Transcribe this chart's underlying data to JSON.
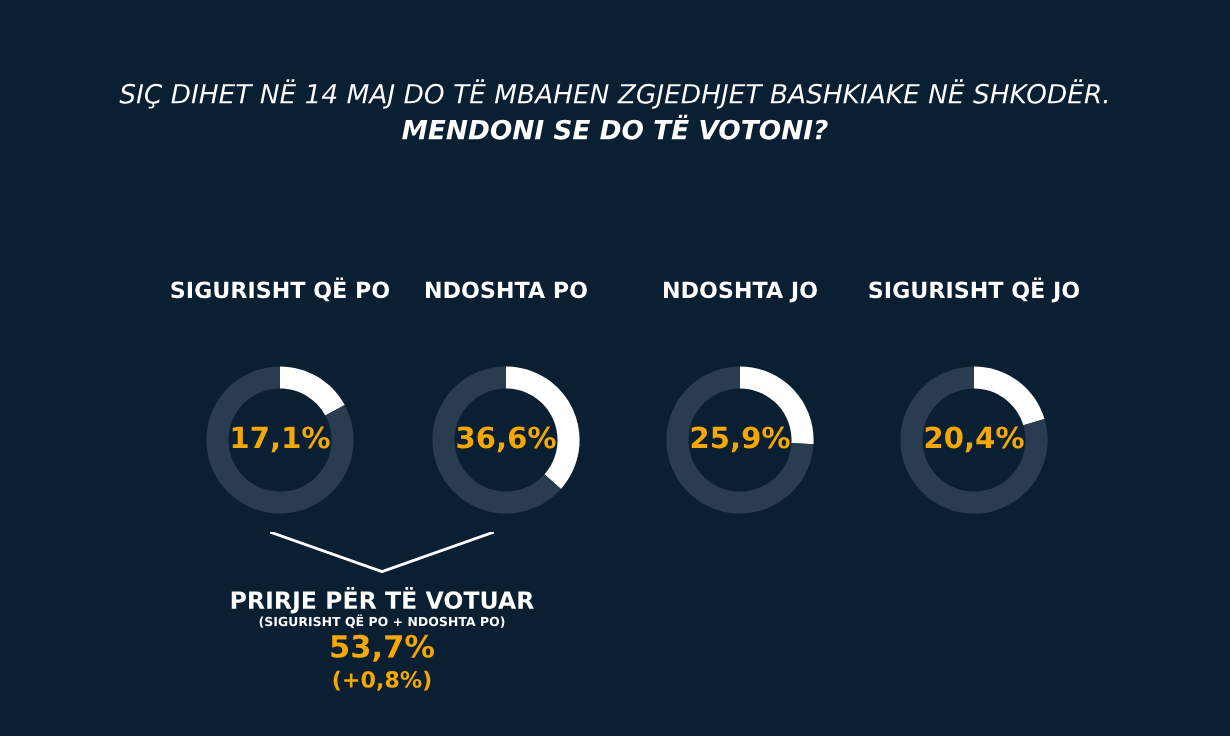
{
  "chart_data": [
    {
      "type": "other",
      "title": "SIÇ DIHET NË 14 MAJ DO TË MBAHEN ZGJEDHJET BASHKIAKE NË SHKODËR.",
      "subtitle": "MENDONI SE DO TË VOTONI?"
    },
    {
      "type": "donut",
      "title": "SIGURISHT QË PO",
      "categories": [
        null,
        null
      ],
      "values": [
        17.1,
        82.9
      ],
      "colors": [
        "#ffffff",
        "#2a3d50"
      ],
      "value_labels": [
        "17,1%",
        null
      ]
    },
    {
      "type": "donut",
      "title": "NDOSHTA PO",
      "categories": [
        null,
        null
      ],
      "values": [
        36.6,
        63.4
      ],
      "colors": [
        "#ffffff",
        "#2a3d50"
      ],
      "value_labels": [
        "36,6%",
        null
      ]
    },
    {
      "type": "donut",
      "title": "NDOSHTA JO",
      "categories": [
        null,
        null
      ],
      "values": [
        25.9,
        74.1
      ],
      "colors": [
        "#ffffff",
        "#2a3d50"
      ],
      "value_labels": [
        "25,9%",
        null
      ]
    },
    {
      "type": "donut",
      "title": "SIGURISHT QË JO",
      "categories": [
        null,
        null
      ],
      "values": [
        20.4,
        79.6
      ],
      "colors": [
        "#ffffff",
        "#2a3d50"
      ],
      "value_labels": [
        "20,4%",
        null
      ]
    },
    {
      "type": "other",
      "title": "PRIRJE PËR TË VOTUAR",
      "subtitle": "(SIGURISHT QË PO + NDOSHTA PO)",
      "annotations": [
        "53,7%",
        "(+0,8%)"
      ]
    }
  ]
}
